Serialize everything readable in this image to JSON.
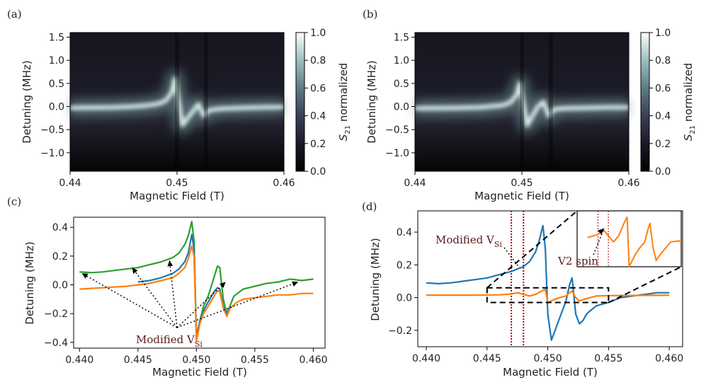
{
  "chart_data": [
    {
      "panel": "(a)",
      "type": "heatmap",
      "xlabel": "Magnetic Field (T)",
      "ylabel": "Detuning (MHz)",
      "xlim": [
        0.44,
        0.46
      ],
      "ylim": [
        -1.4,
        1.6
      ],
      "xticks": [
        "0.44",
        "0.45",
        "0.46"
      ],
      "yticks": [
        "1.5",
        "1.0",
        "0.5",
        "0.0",
        "−0.5",
        "−1.0"
      ],
      "ytick_values": [
        1.5,
        1.0,
        0.5,
        0.0,
        -0.5,
        -1.0
      ],
      "colorbar": {
        "label": "S21 normalized",
        "ticks": [
          "0.0",
          "0.2",
          "0.4",
          "0.6",
          "0.8",
          "1.0"
        ],
        "range": [
          0,
          1
        ]
      },
      "mode_line": {
        "x": [
          0.44,
          0.444,
          0.446,
          0.447,
          0.448,
          0.4485,
          0.449,
          0.4495,
          0.4498,
          0.4505,
          0.451,
          0.4515,
          0.452,
          0.4525,
          0.453,
          0.454,
          0.456,
          0.458,
          0.46
        ],
        "y": [
          -0.03,
          -0.02,
          0.0,
          0.02,
          0.05,
          0.08,
          0.14,
          0.3,
          0.6,
          -0.4,
          -0.25,
          -0.1,
          0.05,
          -0.2,
          -0.08,
          -0.05,
          -0.03,
          -0.02,
          -0.01
        ]
      }
    },
    {
      "panel": "(b)",
      "type": "heatmap",
      "xlabel": "Magnetic Field (T)",
      "ylabel": "Detuning (MHz)",
      "xlim": [
        0.44,
        0.46
      ],
      "ylim": [
        -1.4,
        1.6
      ],
      "xticks": [
        "0.44",
        "0.45",
        "0.46"
      ],
      "yticks": [
        "1.5",
        "1.0",
        "0.5",
        "0.0",
        "−0.5",
        "−1.0"
      ],
      "ytick_values": [
        1.5,
        1.0,
        0.5,
        0.0,
        -0.5,
        -1.0
      ],
      "colorbar": {
        "label": "S21 normalized",
        "ticks": [
          "0.0",
          "0.2",
          "0.4",
          "0.6",
          "0.8",
          "1.0"
        ],
        "range": [
          0,
          1
        ]
      },
      "mode_line": {
        "x": [
          0.44,
          0.444,
          0.446,
          0.447,
          0.448,
          0.4485,
          0.449,
          0.4495,
          0.4498,
          0.4505,
          0.451,
          0.4515,
          0.452,
          0.4525,
          0.453,
          0.454,
          0.456,
          0.458,
          0.46
        ],
        "y": [
          -0.04,
          -0.03,
          -0.02,
          0.0,
          0.02,
          0.05,
          0.1,
          0.25,
          0.5,
          -0.4,
          -0.2,
          0.0,
          0.1,
          -0.2,
          -0.06,
          -0.04,
          -0.03,
          -0.02,
          -0.02
        ]
      }
    },
    {
      "panel": "(c)",
      "type": "line",
      "xlabel": "Magnetic Field (T)",
      "ylabel": "Detuning (MHz)",
      "xlim": [
        0.4395,
        0.461
      ],
      "ylim": [
        -0.44,
        0.47
      ],
      "xticks": [
        "0.440",
        "0.445",
        "0.450",
        "0.455",
        "0.460"
      ],
      "xtick_values": [
        0.44,
        0.445,
        0.45,
        0.455,
        0.46
      ],
      "yticks": [
        "0.4",
        "0.2",
        "0.0",
        "−0.2",
        "−0.4"
      ],
      "ytick_values": [
        0.4,
        0.2,
        0.0,
        -0.2,
        -0.4
      ],
      "annotation": "Modified V",
      "annotation_sub": "Si",
      "series": [
        {
          "name": "green",
          "color": "#2ca02c",
          "x": [
            0.44,
            0.441,
            0.442,
            0.443,
            0.444,
            0.445,
            0.446,
            0.447,
            0.448,
            0.4485,
            0.449,
            0.4493,
            0.4496,
            0.4498,
            0.45,
            0.4503,
            0.4506,
            0.451,
            0.4515,
            0.4518,
            0.452,
            0.4523,
            0.4526,
            0.4529,
            0.4532,
            0.4535,
            0.454,
            0.455,
            0.456,
            0.457,
            0.458,
            0.459,
            0.46
          ],
          "y": [
            0.09,
            0.085,
            0.09,
            0.1,
            0.11,
            0.12,
            0.14,
            0.16,
            0.19,
            0.22,
            0.28,
            0.34,
            0.44,
            0.3,
            -0.38,
            -0.25,
            -0.15,
            -0.08,
            0.05,
            0.13,
            0.12,
            -0.1,
            -0.2,
            -0.14,
            -0.08,
            -0.06,
            -0.03,
            -0.01,
            0.01,
            0.02,
            0.04,
            0.03,
            0.04
          ]
        },
        {
          "name": "blue",
          "color": "#1f77b4",
          "x": [
            0.445,
            0.446,
            0.447,
            0.448,
            0.4485,
            0.449,
            0.4493,
            0.4496,
            0.4498,
            0.45,
            0.4503,
            0.4506,
            0.451,
            0.4515,
            0.4518,
            0.452,
            0.4523,
            0.4526,
            0.4529
          ],
          "y": [
            0.02,
            0.03,
            0.05,
            0.08,
            0.11,
            0.16,
            0.22,
            0.35,
            0.25,
            -0.36,
            -0.25,
            -0.18,
            -0.12,
            -0.05,
            -0.02,
            -0.03,
            -0.15,
            -0.2,
            -0.15
          ]
        },
        {
          "name": "orange",
          "color": "#ff7f0e",
          "x": [
            0.44,
            0.442,
            0.444,
            0.446,
            0.447,
            0.448,
            0.4485,
            0.449,
            0.4493,
            0.4496,
            0.4498,
            0.45,
            0.4503,
            0.4506,
            0.451,
            0.4515,
            0.4518,
            0.452,
            0.4523,
            0.4526,
            0.4529,
            0.4535,
            0.454,
            0.455,
            0.456,
            0.457,
            0.458,
            0.459,
            0.46
          ],
          "y": [
            -0.03,
            -0.02,
            -0.01,
            0.01,
            0.03,
            0.05,
            0.08,
            0.12,
            0.18,
            0.27,
            0.2,
            -0.39,
            -0.27,
            -0.2,
            -0.15,
            -0.08,
            -0.04,
            -0.05,
            -0.16,
            -0.22,
            -0.16,
            -0.12,
            -0.1,
            -0.09,
            -0.08,
            -0.07,
            -0.07,
            -0.06,
            -0.06
          ]
        }
      ]
    },
    {
      "panel": "(d)",
      "type": "line",
      "xlabel": "Magnetic Field (T)",
      "ylabel": "Detuning (MHz)",
      "xlim": [
        0.4393,
        0.4611
      ],
      "ylim": [
        -0.3,
        0.53
      ],
      "xticks": [
        "0.440",
        "0.445",
        "0.450",
        "0.455",
        "0.460"
      ],
      "xtick_values": [
        0.44,
        0.445,
        0.45,
        0.455,
        0.46
      ],
      "yticks": [
        "0.4",
        "0.2",
        "0.0",
        "−0.2"
      ],
      "ytick_values": [
        0.4,
        0.2,
        0.0,
        -0.2
      ],
      "vlines": [
        0.447,
        0.448
      ],
      "zoom_box": {
        "x": [
          0.445,
          0.455
        ],
        "y": [
          -0.03,
          0.06
        ]
      },
      "annotation": "Modified V",
      "annotation_sub": "Si",
      "inset_annotation": "V2 spin",
      "series": [
        {
          "name": "blue",
          "color": "#1f77b4",
          "x": [
            0.44,
            0.441,
            0.442,
            0.443,
            0.444,
            0.445,
            0.446,
            0.447,
            0.448,
            0.4485,
            0.449,
            0.4493,
            0.4496,
            0.4498,
            0.45,
            0.4503,
            0.4506,
            0.451,
            0.4515,
            0.4518,
            0.452,
            0.4523,
            0.4526,
            0.4529,
            0.4532,
            0.4535,
            0.454,
            0.455,
            0.456,
            0.457,
            0.458,
            0.459,
            0.46
          ],
          "y": [
            0.09,
            0.085,
            0.09,
            0.1,
            0.11,
            0.12,
            0.14,
            0.16,
            0.19,
            0.22,
            0.28,
            0.35,
            0.44,
            0.3,
            -0.1,
            -0.26,
            -0.2,
            -0.12,
            -0.02,
            0.08,
            0.12,
            -0.1,
            -0.16,
            -0.14,
            -0.1,
            -0.08,
            -0.05,
            -0.03,
            0.0,
            0.01,
            0.02,
            0.03,
            0.03
          ]
        },
        {
          "name": "orange",
          "color": "#ff7f0e",
          "x": [
            0.44,
            0.442,
            0.444,
            0.446,
            0.447,
            0.4475,
            0.448,
            0.4485,
            0.449,
            0.4495,
            0.4498,
            0.45,
            0.4503,
            0.4506,
            0.451,
            0.4515,
            0.4518,
            0.452,
            0.4523,
            0.4526,
            0.453,
            0.454,
            0.455,
            0.456,
            0.457,
            0.458,
            0.459,
            0.46
          ],
          "y": [
            0.015,
            0.015,
            0.015,
            0.017,
            0.022,
            0.03,
            0.02,
            0.01,
            0.02,
            0.04,
            0.05,
            -0.03,
            -0.02,
            -0.01,
            0.0,
            0.01,
            0.03,
            0.04,
            0.0,
            -0.02,
            -0.01,
            0.01,
            0.012,
            0.013,
            0.013,
            0.014,
            0.014,
            0.015
          ]
        }
      ]
    }
  ]
}
